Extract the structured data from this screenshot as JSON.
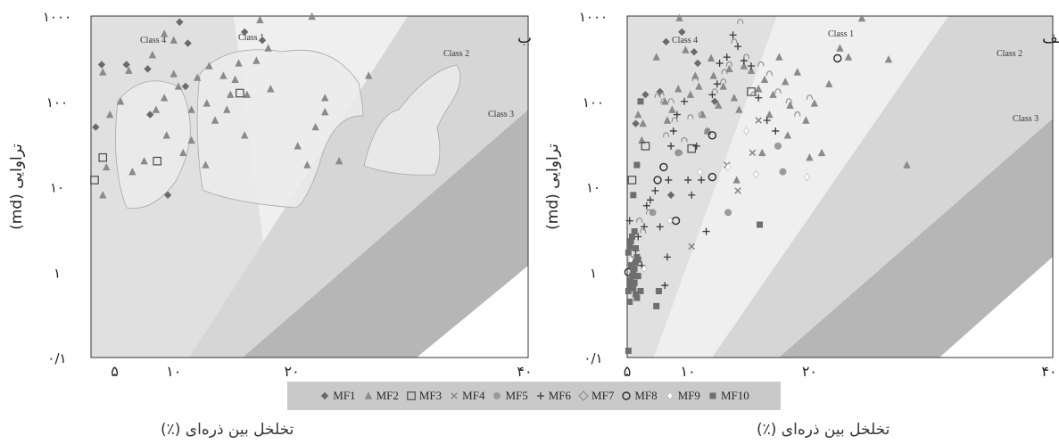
{
  "legend": [
    {
      "label": "MF1",
      "marker": "diamond"
    },
    {
      "label": "MF2",
      "marker": "triangle"
    },
    {
      "label": "MF3",
      "marker": "square-open"
    },
    {
      "label": "MF4",
      "marker": "x"
    },
    {
      "label": "MF5",
      "marker": "circle"
    },
    {
      "label": "MF6",
      "marker": "plus"
    },
    {
      "label": "MF7",
      "marker": "diamond-open"
    },
    {
      "label": "MF8",
      "marker": "circle-open"
    },
    {
      "label": "MF9",
      "marker": "diamond-white"
    },
    {
      "label": "MF10",
      "marker": "square"
    }
  ],
  "colors": {
    "class1": "#efefef",
    "class2": "#d6d6d6",
    "class3": "#b6b6b6",
    "class4": "#e0e0e0",
    "white": "#ffffff",
    "marker": "#7c7c7c",
    "dark_marker": "#3a3a3a",
    "legend_bg": "#c9c9c9"
  },
  "chart_data": [
    {
      "type": "scatter",
      "panel_label": "ب",
      "ylabel": "تراوایی (md)",
      "xlabel": "تخلخل بین ذره‌ای (٪)",
      "y_scale": "log",
      "ylim": [
        0.1,
        1000
      ],
      "y_ticks": [
        "۰/۱",
        "۱",
        "۱۰",
        "۱۰۰",
        "۱۰۰۰"
      ],
      "x_ticks": [
        "۵",
        "۱۰",
        "۲۰",
        "۴۰"
      ],
      "x_tick_values": [
        5,
        10,
        20,
        40
      ],
      "xlim": [
        3,
        40
      ],
      "region_labels": [
        "Class 4",
        "Class 1",
        "Class 2",
        "Class 3"
      ],
      "series": [
        {
          "name": "MF1",
          "marker": "diamond",
          "points": [
            [
              3.4,
              50
            ],
            [
              3.9,
              270
            ],
            [
              6,
              270
            ],
            [
              8,
              70
            ],
            [
              10.5,
              850
            ],
            [
              11.2,
              480
            ],
            [
              11,
              150
            ],
            [
              9.5,
              8
            ],
            [
              16,
              650
            ],
            [
              17.5,
              520
            ],
            [
              7.8,
              240
            ]
          ]
        },
        {
          "name": "MF2",
          "marker": "triangle",
          "points": [
            [
              4.3,
              17
            ],
            [
              4,
              220
            ],
            [
              4,
              8
            ],
            [
              4.6,
              70
            ],
            [
              5.5,
              100
            ],
            [
              6.5,
              15
            ],
            [
              7.5,
              20
            ],
            [
              6.2,
              230
            ],
            [
              8.2,
              350
            ],
            [
              8.5,
              80
            ],
            [
              9.2,
              110
            ],
            [
              9.4,
              40
            ],
            [
              10,
              210
            ],
            [
              10.4,
              150
            ],
            [
              11.5,
              35
            ],
            [
              10.8,
              25
            ],
            [
              12.7,
              18
            ],
            [
              12.8,
              95
            ],
            [
              13.5,
              60
            ],
            [
              14.5,
              80
            ],
            [
              14.8,
              120
            ],
            [
              14.2,
              200
            ],
            [
              15.2,
              180
            ],
            [
              16.2,
              120
            ],
            [
              16,
              40
            ],
            [
              13,
              260
            ],
            [
              12,
              190
            ],
            [
              17.3,
              900
            ],
            [
              17,
              300
            ],
            [
              18,
              420
            ],
            [
              15.5,
              280
            ],
            [
              21.7,
              990
            ],
            [
              26.5,
              200
            ],
            [
              18.2,
              140
            ],
            [
              22,
              50
            ],
            [
              22.8,
              75
            ],
            [
              22.8,
              110
            ],
            [
              24,
              20
            ],
            [
              21.3,
              18
            ],
            [
              20.5,
              30
            ],
            [
              10,
              520
            ],
            [
              11.5,
              80
            ],
            [
              9.2,
              620
            ]
          ]
        },
        {
          "name": "MF3",
          "marker": "square-open",
          "points": [
            [
              3.3,
              12
            ],
            [
              4,
              22
            ],
            [
              8.6,
              20
            ],
            [
              15.6,
              125
            ]
          ]
        }
      ]
    },
    {
      "type": "scatter",
      "panel_label": "الف",
      "ylabel": "تراوایی (md)",
      "xlabel": "تخلخل بین ذره‌ای (٪)",
      "y_scale": "log",
      "ylim": [
        0.1,
        1000
      ],
      "y_ticks": [
        "۰/۱",
        "۱",
        "۱۰",
        "۱۰۰",
        "۱۰۰۰"
      ],
      "x_ticks": [
        "۵",
        "۱۰",
        "۲۰",
        "۴۰"
      ],
      "x_tick_values": [
        5,
        10,
        20,
        40
      ],
      "xlim": [
        5,
        40
      ],
      "region_labels": [
        "Class 4",
        "Class 1",
        "Class 2",
        "Class 3"
      ],
      "series": [
        {
          "name": "MF1",
          "marker": "diamond",
          "points": [
            [
              5.7,
              55
            ],
            [
              6.5,
              120
            ],
            [
              7.7,
              130
            ],
            [
              8.2,
              500
            ],
            [
              9.5,
              650
            ],
            [
              10.5,
              380
            ],
            [
              12.2,
              100
            ],
            [
              10.8,
              280
            ],
            [
              8.6,
              8
            ]
          ]
        },
        {
          "name": "MF2",
          "marker": "triangle",
          "points": [
            [
              5.9,
              70
            ],
            [
              6.2,
              35
            ],
            [
              6.3,
              55
            ],
            [
              7.4,
              330
            ],
            [
              8.1,
              100
            ],
            [
              8.3,
              60
            ],
            [
              8.7,
              80
            ],
            [
              9.2,
              140
            ],
            [
              9.3,
              950
            ],
            [
              9.8,
              400
            ],
            [
              10.2,
              120
            ],
            [
              10.6,
              200
            ],
            [
              10.9,
              150
            ],
            [
              11.2,
              70
            ],
            [
              11.6,
              45
            ],
            [
              11.9,
              320
            ],
            [
              12.1,
              200
            ],
            [
              12.5,
              90
            ],
            [
              12.9,
              150
            ],
            [
              13.4,
              240
            ],
            [
              13.8,
              110
            ],
            [
              14.2,
              80
            ],
            [
              14.6,
              260
            ],
            [
              15.2,
              230
            ],
            [
              15.8,
              140
            ],
            [
              16.3,
              180
            ],
            [
              16.7,
              70
            ],
            [
              17,
              120
            ],
            [
              17.5,
              330
            ],
            [
              18,
              170
            ],
            [
              18.4,
              90
            ],
            [
              19,
              220
            ],
            [
              19.7,
              60
            ],
            [
              20.4,
              95
            ],
            [
              21,
              25
            ],
            [
              21.6,
              160
            ],
            [
              22.5,
              420
            ],
            [
              23.2,
              330
            ],
            [
              24.3,
              940
            ],
            [
              26.5,
              310
            ],
            [
              28,
              18
            ],
            [
              18.2,
              40
            ],
            [
              16.1,
              25
            ],
            [
              20,
              22
            ],
            [
              14,
              12
            ]
          ]
        },
        {
          "name": "MF3",
          "marker": "square-open",
          "points": [
            [
              5.4,
              12
            ],
            [
              6.5,
              30
            ],
            [
              10.3,
              28
            ],
            [
              15.2,
              130
            ]
          ]
        },
        {
          "name": "MF4",
          "marker": "x",
          "points": [
            [
              10.3,
              2
            ],
            [
              13.2,
              18
            ],
            [
              14.1,
              9
            ],
            [
              15.3,
              25
            ],
            [
              15.8,
              60
            ]
          ]
        },
        {
          "name": "MF5",
          "marker": "circle",
          "points": [
            [
              5.2,
              1.2
            ],
            [
              5.8,
              0.9
            ],
            [
              7.1,
              5
            ],
            [
              9.2,
              25
            ],
            [
              13.3,
              5
            ],
            [
              17.4,
              30
            ],
            [
              17.8,
              15
            ]
          ]
        },
        {
          "name": "MF6",
          "marker": "plus",
          "points": [
            [
              5.2,
              4
            ],
            [
              5.4,
              1.4
            ],
            [
              5.7,
              1.8
            ],
            [
              5.9,
              2.6
            ],
            [
              6.2,
              1.2
            ],
            [
              6.4,
              3.4
            ],
            [
              6.6,
              6
            ],
            [
              6.9,
              7
            ],
            [
              7.3,
              9
            ],
            [
              7.7,
              3.4
            ],
            [
              8.1,
              0.7
            ],
            [
              8.3,
              1.5
            ],
            [
              8.4,
              12
            ],
            [
              8.6,
              30
            ],
            [
              8.8,
              45
            ],
            [
              9.1,
              70
            ],
            [
              9.7,
              100
            ],
            [
              10,
              12
            ],
            [
              10.3,
              8
            ],
            [
              10.7,
              30
            ],
            [
              11.1,
              12
            ],
            [
              11.5,
              3
            ],
            [
              12,
              120
            ],
            [
              12.6,
              280
            ],
            [
              13.2,
              330
            ],
            [
              13.7,
              600
            ],
            [
              14.1,
              440
            ],
            [
              14.6,
              300
            ],
            [
              15.2,
              260
            ],
            [
              15.8,
              110
            ],
            [
              16.5,
              60
            ],
            [
              17.2,
              45
            ],
            [
              12.4,
              160
            ]
          ]
        },
        {
          "name": "MF7",
          "marker": "diamond-open",
          "points": [
            [
              6.3,
              3
            ],
            [
              6.8,
              5
            ],
            [
              7.5,
              115
            ],
            [
              7.8,
              120
            ],
            [
              8,
              100
            ],
            [
              8.2,
              40
            ],
            [
              8.6,
              100
            ],
            [
              8.9,
              60
            ],
            [
              9.3,
              25
            ],
            [
              9.7,
              35
            ],
            [
              10.2,
              65
            ],
            [
              10.6,
              180
            ],
            [
              11.1,
              70
            ],
            [
              11.6,
              45
            ],
            [
              12.2,
              130
            ],
            [
              12.9,
              170
            ],
            [
              13.4,
              270
            ],
            [
              13.8,
              500
            ],
            [
              14.3,
              850
            ],
            [
              14.8,
              330
            ],
            [
              15.4,
              120
            ],
            [
              16,
              270
            ],
            [
              16.7,
              210
            ],
            [
              17.4,
              130
            ],
            [
              18.3,
              100
            ],
            [
              19,
              70
            ],
            [
              20,
              110
            ],
            [
              13,
              220
            ],
            [
              6,
              4
            ]
          ]
        },
        {
          "name": "MF8",
          "marker": "circle-open",
          "points": [
            [
              5.1,
              1
            ],
            [
              7.5,
              12
            ],
            [
              8,
              17
            ],
            [
              9,
              4
            ],
            [
              12,
              40
            ],
            [
              12,
              13
            ],
            [
              22.3,
              320
            ]
          ]
        },
        {
          "name": "MF9",
          "marker": "diamond-white",
          "points": [
            [
              5.3,
              1.4
            ],
            [
              6.4,
              1.1
            ],
            [
              8.5,
              4
            ],
            [
              11,
              15
            ],
            [
              13.3,
              17
            ],
            [
              15.6,
              14
            ],
            [
              19.8,
              13
            ],
            [
              14.8,
              45
            ]
          ]
        },
        {
          "name": "MF10",
          "marker": "square",
          "points": [
            [
              5.5,
              8
            ],
            [
              5.6,
              3
            ],
            [
              5.8,
              18
            ],
            [
              6.1,
              100
            ],
            [
              5.1,
              0.6
            ],
            [
              5.2,
              0.7
            ],
            [
              5.3,
              0.8
            ],
            [
              5.4,
              0.9
            ],
            [
              5.5,
              1
            ],
            [
              5.6,
              1.1
            ],
            [
              5.7,
              1.3
            ],
            [
              5.8,
              1.5
            ],
            [
              5.1,
              1.7
            ],
            [
              5.2,
              2
            ],
            [
              5.3,
              2.3
            ],
            [
              5.4,
              2.6
            ],
            [
              5.5,
              0.65
            ],
            [
              5.6,
              0.75
            ],
            [
              5.7,
              0.55
            ],
            [
              5.8,
              0.5
            ],
            [
              5.2,
              0.45
            ],
            [
              5.3,
              1.2
            ],
            [
              5.9,
              0.9
            ],
            [
              6.1,
              0.6
            ],
            [
              7.6,
              0.6
            ],
            [
              7.4,
              0.4
            ],
            [
              5.1,
              0.12
            ],
            [
              15.9,
              3.6
            ],
            [
              5.7,
              1.9
            ],
            [
              5.9,
              1.4
            ]
          ]
        }
      ]
    }
  ]
}
